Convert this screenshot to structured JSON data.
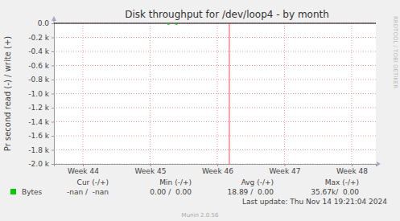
{
  "chart_data": {
    "type": "line",
    "title": "Disk throughput for /dev/loop4 - by month",
    "y_label": "Pr second read (-) / write (+)",
    "xlim": [
      43.57,
      48.36
    ],
    "xticks": [
      {
        "value": 44,
        "label": "Week 44"
      },
      {
        "value": 45,
        "label": "Week 45"
      },
      {
        "value": 46,
        "label": "Week 46"
      },
      {
        "value": 47,
        "label": "Week 47"
      },
      {
        "value": 48,
        "label": "Week 48"
      }
    ],
    "ylim": [
      -2000,
      0
    ],
    "yticks": [
      {
        "value": 0,
        "label": "0.0"
      },
      {
        "value": -200,
        "label": "-0.2 k"
      },
      {
        "value": -400,
        "label": "-0.4 k"
      },
      {
        "value": -600,
        "label": "-0.6 k"
      },
      {
        "value": -800,
        "label": "-0.8 k"
      },
      {
        "value": -1000,
        "label": "-1.0 k"
      },
      {
        "value": -1200,
        "label": "-1.2 k"
      },
      {
        "value": -1400,
        "label": "-1.4 k"
      },
      {
        "value": -1600,
        "label": "-1.6 k"
      },
      {
        "value": -1800,
        "label": "-1.8 k"
      },
      {
        "value": -2000,
        "label": "-2.0 k"
      }
    ],
    "grid": true,
    "now_line": {
      "x": 46.18,
      "color": "#ff0000"
    },
    "series": [
      {
        "name": "Bytes",
        "color": "#00cc00",
        "x": [
          45.26,
          45.29,
          45.31,
          45.38,
          45.41
        ],
        "values": [
          -12,
          -12,
          null,
          -12,
          -12
        ],
        "stats": [
          "-nan /  -nan",
          "0.00 /  0.00",
          "18.89 /  0.00",
          "35.67k/  0.00"
        ]
      }
    ],
    "stats_columns": [
      "Cur (-/+)",
      "Min (-/+)",
      "Avg (-/+)",
      "Max (-/+)"
    ],
    "last_update": "Last update: Thu Nov 14 19:21:04 2024",
    "footer": "Munin 2.0.56",
    "watermark": "RRDTOOL / TOBI OETIKER"
  }
}
